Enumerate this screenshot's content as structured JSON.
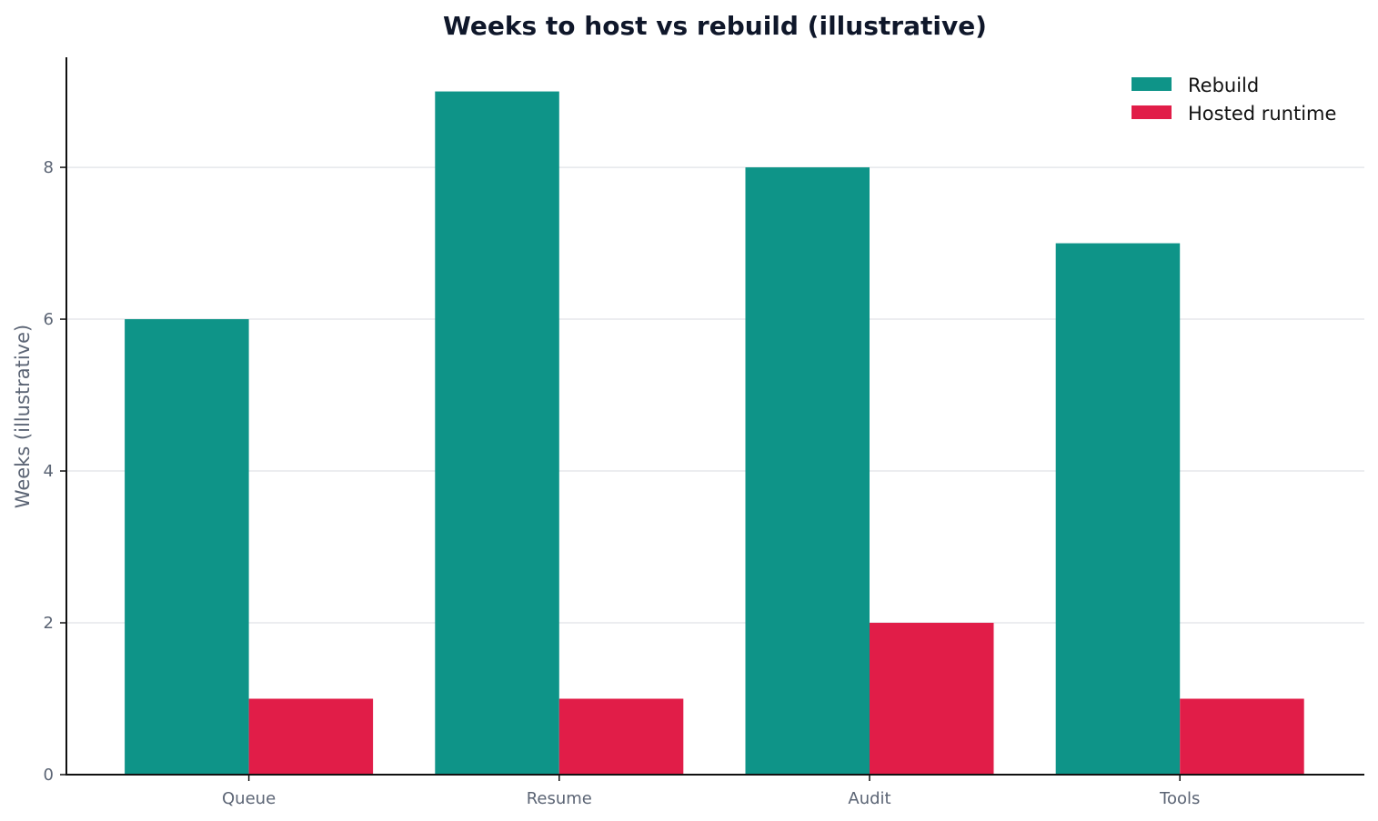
{
  "chart_data": {
    "type": "bar",
    "title": "Weeks to host vs rebuild (illustrative)",
    "xlabel": "",
    "ylabel": "Weeks (illustrative)",
    "categories": [
      "Queue",
      "Resume",
      "Audit",
      "Tools"
    ],
    "series": [
      {
        "name": "Rebuild",
        "values": [
          6,
          9,
          8,
          7
        ],
        "color": "#0e9488"
      },
      {
        "name": "Hosted runtime",
        "values": [
          1,
          1,
          2,
          1
        ],
        "color": "#e11d48"
      }
    ],
    "ylim": [
      0,
      9.45
    ],
    "yticks": [
      0,
      2,
      4,
      6,
      8
    ],
    "grid": true,
    "legend_position": "top-right"
  }
}
